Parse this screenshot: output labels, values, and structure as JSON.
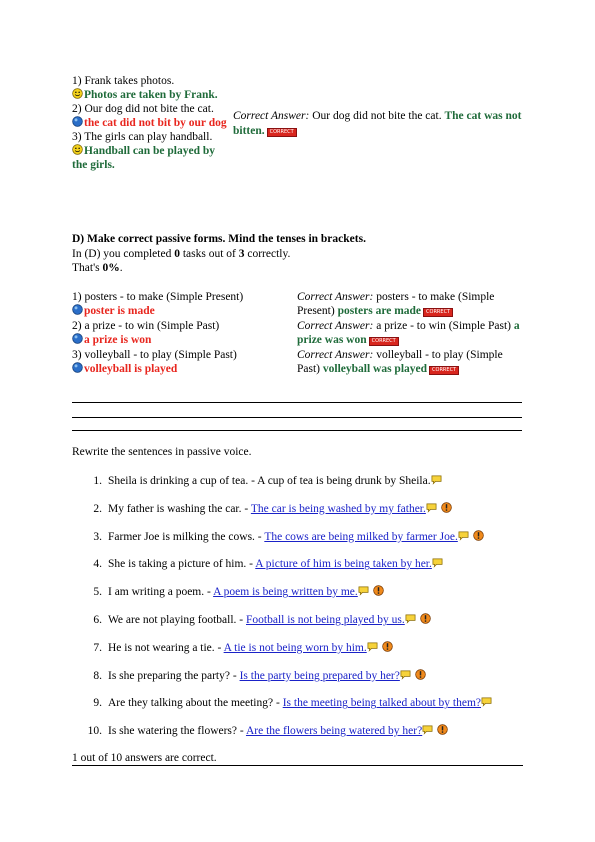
{
  "exercise_c": {
    "items": [
      {
        "number": "1)",
        "question": "Frank takes photos.",
        "answer": "Photos are taken by Frank."
      },
      {
        "number": "2)",
        "question": "Our dog did not bite the cat.",
        "answer": "the cat did not bit by our dog",
        "correct_label": "Correct Answer:",
        "correct_question": "Our dog did not bite the cat.",
        "correct_answer": "The cat was not bitten.",
        "badge": "CORRECT"
      },
      {
        "number": "3)",
        "question": "The girls can play handball.",
        "answer": "Handball can be played by the girls."
      }
    ]
  },
  "exercise_d": {
    "title": "D) Make correct passive forms. Mind the tenses in brackets.",
    "summary": {
      "prefix": "In (D) you completed",
      "completed": 0,
      "middle": "tasks out of",
      "total": 3,
      "suffix": "correctly."
    },
    "score": {
      "prefix": "That's",
      "value": "0%",
      "suffix": "."
    },
    "items": [
      {
        "number": "1)",
        "question": "posters - to make (Simple Present)",
        "answer": "poster is made",
        "correct_label": "Correct Answer:",
        "correct_question": "posters - to make (Simple Present)",
        "correct_answer": "posters are made",
        "badge": "CORRECT"
      },
      {
        "number": "2)",
        "question": "a prize - to win (Simple Past)",
        "answer": "a prize is won",
        "correct_label": "Correct Answer:",
        "correct_question": "a prize - to win (Simple Past)",
        "correct_answer": "a prize was won",
        "badge": "CORRECT"
      },
      {
        "number": "3)",
        "question": "volleyball - to play (Simple Past)",
        "answer": "volleyball is played",
        "correct_label": "Correct Answer:",
        "correct_question": "volleyball - to play (Simple Past)",
        "correct_answer": "volleyball was played",
        "badge": "CORRECT"
      }
    ]
  },
  "exercise_rewrite": {
    "instruction": "Rewrite the sentences in passive voice.",
    "items": [
      {
        "number": "1.",
        "prompt": "Sheila is drinking a cup of tea. -",
        "answer": "A cup of tea is being drunk by Sheila.",
        "linked": false,
        "warning": false
      },
      {
        "number": "2.",
        "prompt": "My father is washing the car. -",
        "answer": "The car is being washed by my father.",
        "linked": true,
        "warning": true
      },
      {
        "number": "3.",
        "prompt": "Farmer Joe is milking the cows. -",
        "answer": "The cows are being milked by farmer Joe.",
        "linked": true,
        "warning": true
      },
      {
        "number": "4.",
        "prompt": "She is taking a picture of him. -",
        "answer": "A picture of him is being taken by her.",
        "linked": true,
        "warning": false
      },
      {
        "number": "5.",
        "prompt": "I am writing a poem. -",
        "answer": "A poem is being written by me.",
        "linked": true,
        "warning": true
      },
      {
        "number": "6.",
        "prompt": "We are not playing football. -",
        "answer": "Football is not being played by us.",
        "linked": true,
        "warning": true
      },
      {
        "number": "7.",
        "prompt": "He is not wearing a tie. -",
        "answer": "A tie is not being worn by him.",
        "linked": true,
        "warning": true
      },
      {
        "number": "8.",
        "prompt": "Is she preparing the party? -",
        "answer": "Is the party being prepared by her?",
        "linked": true,
        "warning": true
      },
      {
        "number": "9.",
        "prompt": "Are they talking about the meeting? -",
        "answer": "Is the meeting being talked about by them?",
        "linked": true,
        "warning": false
      },
      {
        "number": "10.",
        "prompt": "Is she watering the flowers? -",
        "answer": "Are the flowers being watered by her?",
        "linked": true,
        "warning": true
      }
    ],
    "result": "1 out of 10 answers are correct."
  }
}
